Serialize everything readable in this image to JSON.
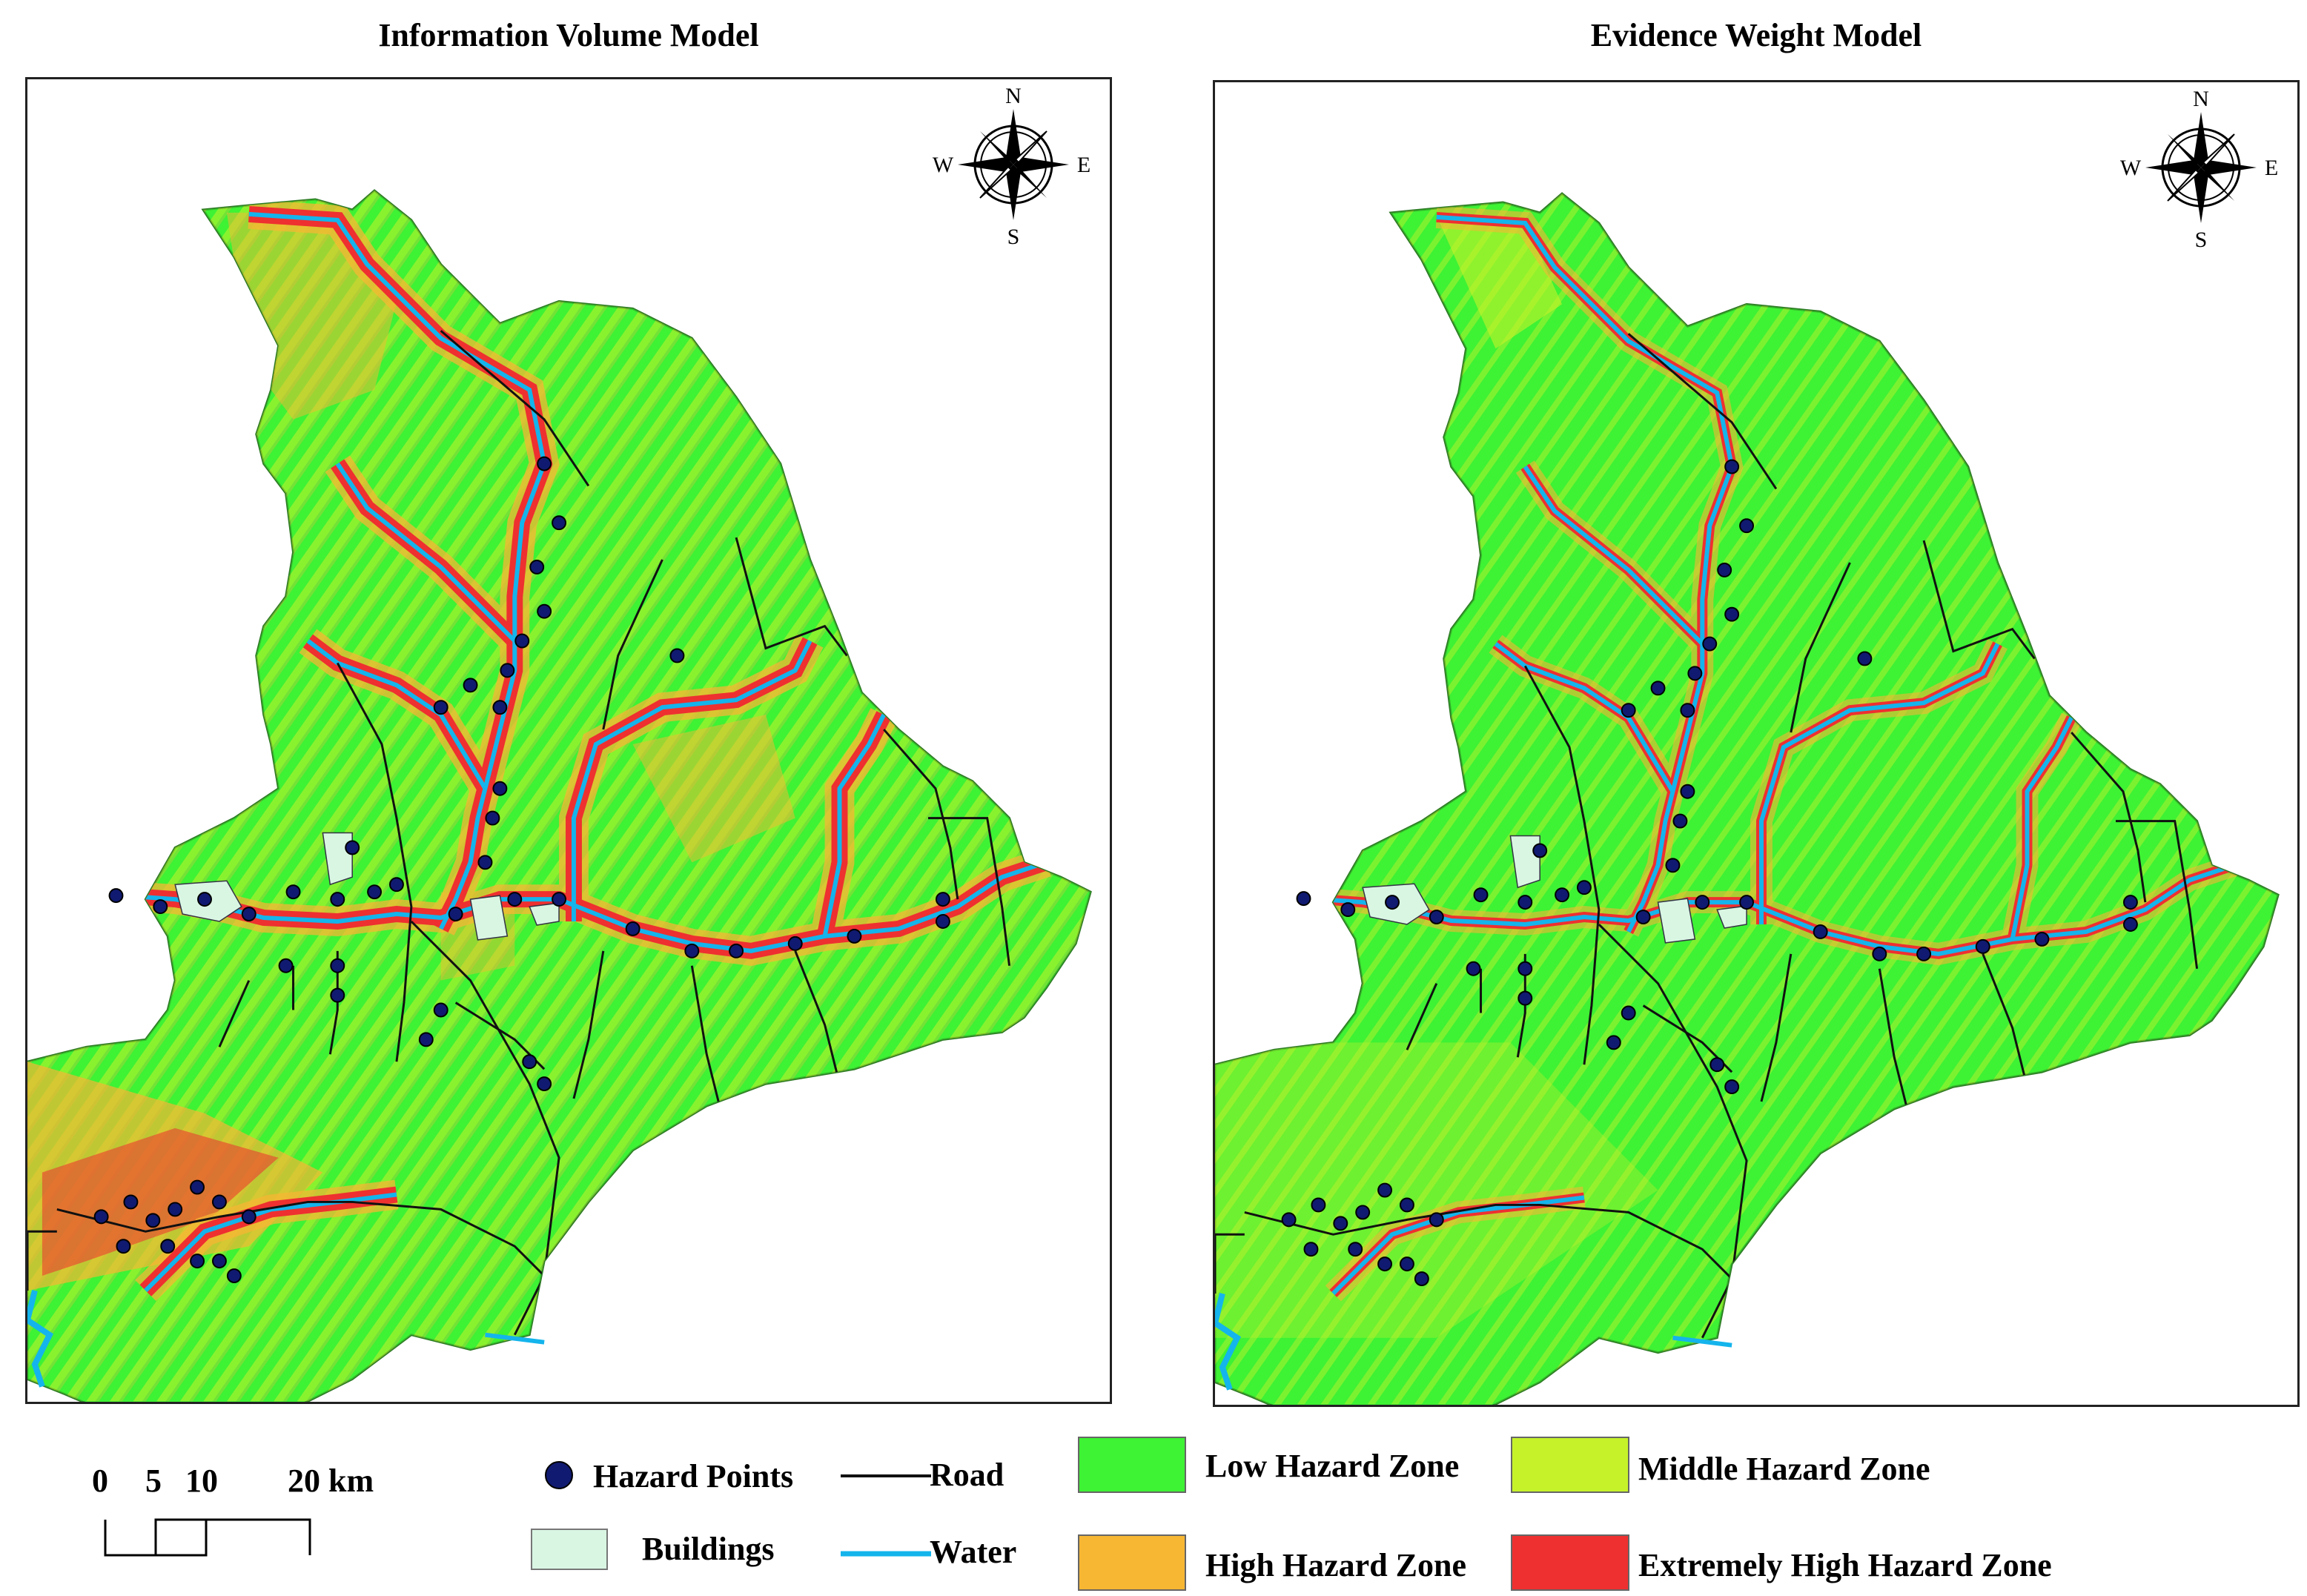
{
  "titles": {
    "left": "Information Volume Model",
    "right": "Evidence Weight Model"
  },
  "compass": {
    "n": "N",
    "s": "S",
    "e": "E",
    "w": "W"
  },
  "scale_bar": {
    "labels": [
      "0",
      "5",
      "10",
      "20 km"
    ]
  },
  "legend": {
    "hazard_points": "Hazard Points",
    "buildings": "Buildings",
    "road": "Road",
    "water": "Water",
    "low": "Low Hazard Zone",
    "middle": "Middle Hazard Zone",
    "high": "High Hazard Zone",
    "extreme": "Extremely High Hazard Zone"
  },
  "colors": {
    "low": "#3ef234",
    "middle": "#c6f22a",
    "high": "#f7b733",
    "extreme": "#ee3030",
    "water": "#14b4ec",
    "road": "#111111",
    "hazard_point": "#101a70",
    "buildings": "#d9f6e3"
  }
}
